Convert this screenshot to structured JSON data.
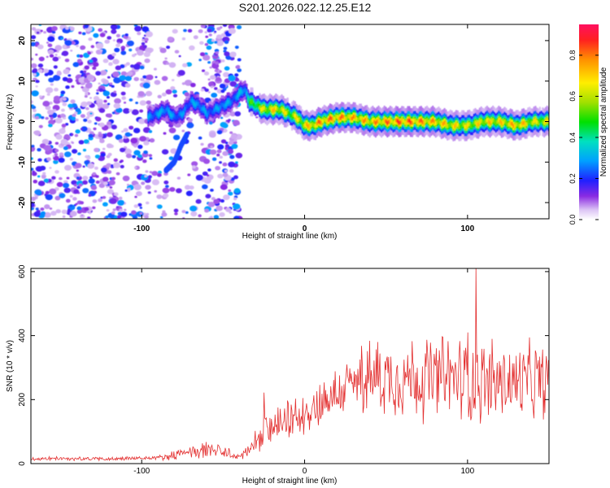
{
  "figure_title": "S201.2026.022.12.25.E12",
  "chart_data": [
    {
      "type": "heatmap",
      "title": "",
      "xlabel": "Height of straight line (km)",
      "ylabel": "Frequency (Hz)",
      "xlim": [
        -168,
        150
      ],
      "ylim": [
        -24,
        24
      ],
      "xticks": [
        -100,
        0,
        100
      ],
      "yticks": [
        -20,
        -10,
        0,
        10,
        20
      ],
      "colorbar": {
        "label": "Normalized spectral amplitude",
        "range": [
          0,
          0.95
        ],
        "ticks": [
          0.0,
          0.2,
          0.4,
          0.6,
          0.8
        ]
      },
      "noise_region": {
        "x_range": [
          -168,
          -40
        ],
        "amplitude": [
          0.05,
          0.3
        ]
      },
      "ridge": {
        "description": "frequency of dominant spectral ridge vs height",
        "x": [
          -96,
          -90,
          -85,
          -80,
          -75,
          -70,
          -65,
          -60,
          -55,
          -50,
          -45,
          -40,
          -37,
          -34,
          -30,
          -25,
          -20,
          -15,
          -10,
          -5,
          0,
          5,
          10,
          20,
          30,
          40,
          50,
          60,
          70,
          80,
          90,
          100,
          110,
          120,
          130,
          140,
          150
        ],
        "freq": [
          1,
          2,
          3,
          1,
          2,
          5,
          4,
          2,
          3,
          4,
          5,
          7,
          8,
          5,
          4,
          3,
          3,
          3,
          2,
          1,
          -1,
          -1,
          0,
          1,
          1,
          0,
          0,
          0,
          0,
          0,
          -1,
          -1,
          0,
          0,
          -1,
          0,
          0
        ],
        "amplitude": [
          0.3,
          0.32,
          0.35,
          0.3,
          0.3,
          0.3,
          0.35,
          0.3,
          0.3,
          0.35,
          0.3,
          0.35,
          0.35,
          0.5,
          0.6,
          0.7,
          0.75,
          0.75,
          0.65,
          0.7,
          0.75,
          0.8,
          0.85,
          0.85,
          0.8,
          0.8,
          0.85,
          0.9,
          0.85,
          0.8,
          0.75,
          0.7,
          0.75,
          0.75,
          0.8,
          0.7,
          0.7
        ]
      },
      "lower_branch": {
        "x": [
          -85,
          -80,
          -76,
          -72
        ],
        "freq": [
          -12,
          -10,
          -6,
          -3
        ]
      }
    },
    {
      "type": "line",
      "title": "",
      "xlabel": "Height of straight line (km)",
      "ylabel": "SNR (10 * v/v)",
      "xlim": [
        -168,
        150
      ],
      "ylim": [
        0,
        610
      ],
      "xticks": [
        -100,
        0,
        100
      ],
      "yticks": [
        0,
        200,
        400,
        600
      ],
      "color": "#e33030",
      "envelope": {
        "description": "approximate mean and peak-to-peak spread of the noisy SNR trace",
        "x": [
          -168,
          -120,
          -90,
          -75,
          -60,
          -50,
          -40,
          -30,
          -25,
          -20,
          -10,
          0,
          10,
          20,
          30,
          40,
          50,
          60,
          70,
          80,
          90,
          100,
          110,
          120,
          130,
          140,
          150
        ],
        "mean": [
          15,
          15,
          18,
          30,
          45,
          35,
          20,
          60,
          90,
          110,
          130,
          160,
          190,
          220,
          250,
          265,
          270,
          270,
          270,
          265,
          270,
          260,
          255,
          255,
          250,
          255,
          255
        ],
        "spread": [
          15,
          15,
          18,
          40,
          70,
          50,
          25,
          90,
          120,
          130,
          140,
          160,
          180,
          200,
          220,
          260,
          280,
          300,
          320,
          320,
          320,
          320,
          310,
          300,
          300,
          290,
          290
        ]
      },
      "spikes": [
        {
          "x": -25,
          "y": 222
        },
        {
          "x": 35,
          "y": 368
        },
        {
          "x": 45,
          "y": 380
        },
        {
          "x": 85,
          "y": 395
        },
        {
          "x": 100,
          "y": 410
        },
        {
          "x": 105,
          "y": 610
        },
        {
          "x": 115,
          "y": 390
        }
      ]
    }
  ]
}
